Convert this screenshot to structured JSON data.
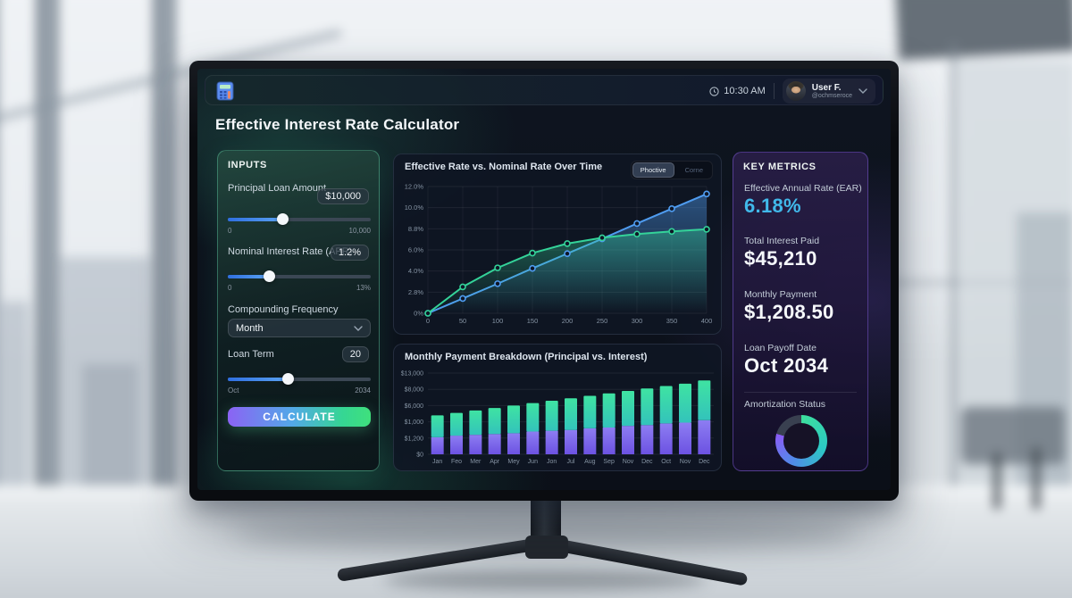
{
  "window": {
    "time": "10:30 AM",
    "user_name": "User F.",
    "user_handle": "@ochmseroce"
  },
  "page": {
    "title": "Effective Interest Rate Calculator"
  },
  "inputs": {
    "header": "INPUTS",
    "principal": {
      "label": "Principal Loan Amount",
      "value": "$10,000",
      "min": "0",
      "max": "10,000",
      "percent": 38
    },
    "apr": {
      "label": "Nominal Interest Rate (APR)",
      "value": "1.2%",
      "min": "0",
      "max": "13%",
      "percent": 29
    },
    "frequency": {
      "label": "Compounding Frequency",
      "value": "Month"
    },
    "term": {
      "label": "Loan Term",
      "value": "20",
      "min": "Oct",
      "max": "2034",
      "percent": 42
    },
    "calculate_label": "CALCULATE"
  },
  "chart_data": [
    {
      "type": "line",
      "title": "Effective Rate vs. Nominal Rate Over Time",
      "toggle": [
        "Phoctive",
        "Corne"
      ],
      "x_tick_labels": [
        "0",
        "50",
        "100",
        "150",
        "200",
        "250",
        "300",
        "350",
        "400"
      ],
      "y_tick_labels_top_to_bottom": [
        "12.0%",
        "10.0%",
        "8.8%",
        "6.0%",
        "4.0%",
        "2.8%",
        "0%"
      ],
      "ylim": [
        0,
        12
      ],
      "grid": true,
      "series": [
        {
          "name": "nominal-rate",
          "color": "#4f9cf0",
          "values": [
            0,
            1.4,
            2.8,
            4.25,
            5.65,
            7.05,
            8.5,
            9.9,
            11.3
          ]
        },
        {
          "name": "effective-rate",
          "color": "#34d399",
          "values": [
            0,
            2.5,
            4.3,
            5.7,
            6.6,
            7.15,
            7.5,
            7.75,
            7.95
          ]
        }
      ]
    },
    {
      "type": "bar",
      "title": "Monthly Payment Breakdown (Principal vs. Interest)",
      "stacked": true,
      "categories": [
        "Jan",
        "Feo",
        "Mer",
        "Apr",
        "Mey",
        "Jun",
        "Jon",
        "Jul",
        "Aug",
        "Sep",
        "Nov",
        "Dec",
        "Oct",
        "Nov",
        "Dec"
      ],
      "y_tick_labels_top_to_bottom": [
        "$13,000",
        "$8,000",
        "$6,000",
        "$1,000",
        "$1,200",
        "$0"
      ],
      "units": "fraction_of_axis_max",
      "series": [
        {
          "name": "interest",
          "colors": [
            "#8d7df2",
            "#6c52e2"
          ],
          "values": [
            0.21,
            0.23,
            0.24,
            0.25,
            0.26,
            0.28,
            0.29,
            0.3,
            0.32,
            0.33,
            0.35,
            0.36,
            0.38,
            0.39,
            0.42
          ]
        },
        {
          "name": "principal",
          "colors": [
            "#3fe3a2",
            "#33c3bb"
          ],
          "values": [
            0.27,
            0.28,
            0.3,
            0.32,
            0.34,
            0.35,
            0.37,
            0.39,
            0.4,
            0.42,
            0.43,
            0.45,
            0.46,
            0.48,
            0.49
          ]
        }
      ]
    },
    {
      "type": "donut",
      "title": "Amortization Status",
      "completed_deg": 286,
      "completed_gradient": [
        "#3ddf9d",
        "#2cc9c4",
        "#4f8ce8",
        "#8b5cf6"
      ],
      "remaining_color": "#394050"
    }
  ],
  "metrics": {
    "header": "KEY METRICS",
    "items": [
      {
        "label": "Effective Annual Rate (EAR)",
        "value": "6.18%",
        "color": "#41b9ea"
      },
      {
        "label": "Total Interest Paid",
        "value": "$45,210",
        "color": "#f5f8fb"
      },
      {
        "label": "Monthly Payment",
        "value": "$1,208.50",
        "color": "#f5f8fb"
      },
      {
        "label": "Loan Payoff Date",
        "value": "Oct 2034",
        "color": "#f5f8fb"
      }
    ],
    "amortization_label": "Amortization Status"
  }
}
